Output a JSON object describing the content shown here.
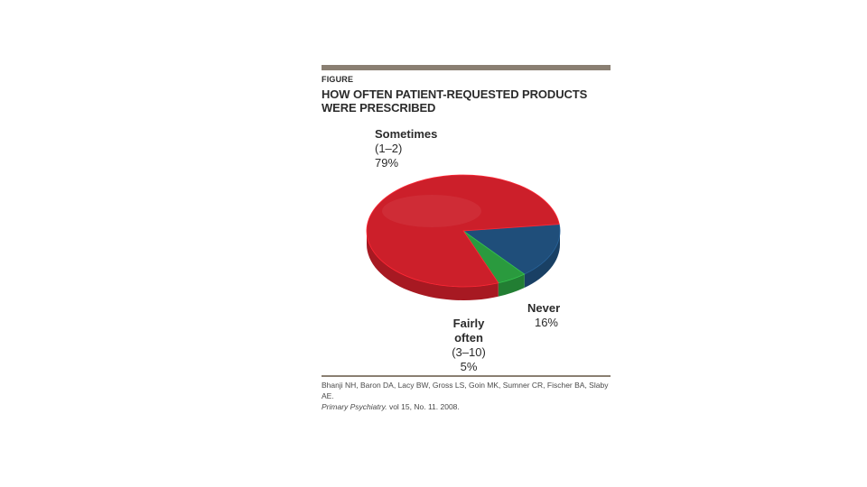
{
  "figure": {
    "label": "FIGURE",
    "title": "HOW OFTEN PATIENT-REQUESTED PRODUCTS WERE PRESCRIBED",
    "citation_authors": "Bhanji NH, Baron DA, Lacy BW, Gross LS, Goin MK, Sumner CR, Fischer BA, Slaby AE.",
    "citation_journal": "Primary Psychiatry.",
    "citation_issue": "vol 15, No. 11. 2008."
  },
  "colors": {
    "sometimes": "#cc1f2a",
    "never": "#1f4e7a",
    "fairly_often": "#2a9a3e",
    "rule": "#8a7f72"
  },
  "chart_data": {
    "type": "pie",
    "title": "HOW OFTEN PATIENT-REQUESTED PRODUCTS WERE PRESCRIBED",
    "slices": [
      {
        "label": "Sometimes",
        "range": "(1–2)",
        "value": 79,
        "value_label": "79%",
        "color": "#cc1f2a"
      },
      {
        "label": "Never",
        "range": "",
        "value": 16,
        "value_label": "16%",
        "color": "#1f4e7a"
      },
      {
        "label": "Fairly often",
        "range": "(3–10)",
        "value": 5,
        "value_label": "5%",
        "color": "#2a9a3e"
      }
    ]
  }
}
